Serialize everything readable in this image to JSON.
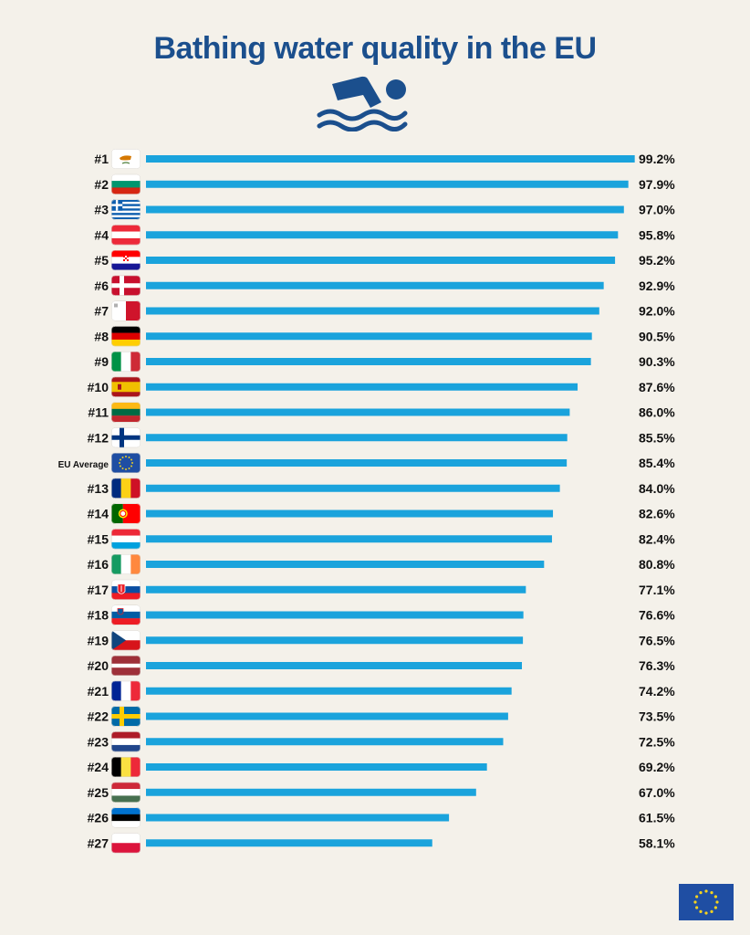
{
  "title": "Bathing water quality in the EU",
  "icons": {
    "swimmer": "swimmer-icon",
    "eu_flag": "eu-flag-icon"
  },
  "colors": {
    "bar": "#1aa3dc",
    "title": "#1b4f8d",
    "background": "#f4f1ea",
    "eu_blue": "#1f4ea3",
    "eu_star": "#f6d31f"
  },
  "chart_data": {
    "type": "bar",
    "orientation": "horizontal",
    "title": "Bathing water quality in the EU",
    "xlim": [
      0,
      100
    ],
    "grid": false,
    "legend": "none",
    "categories": [
      "#1",
      "#2",
      "#3",
      "#4",
      "#5",
      "#6",
      "#7",
      "#8",
      "#9",
      "#10",
      "#11",
      "#12",
      "EU Average",
      "#13",
      "#14",
      "#15",
      "#16",
      "#17",
      "#18",
      "#19",
      "#20",
      "#21",
      "#22",
      "#23",
      "#24",
      "#25",
      "#26",
      "#27"
    ],
    "flags": [
      "cyprus",
      "bulgaria",
      "greece",
      "austria",
      "croatia",
      "denmark",
      "malta",
      "germany",
      "italy",
      "spain",
      "lithuania",
      "finland",
      "eu",
      "romania",
      "portugal",
      "luxembourg",
      "ireland",
      "slovakia",
      "slovenia",
      "czechia",
      "latvia",
      "france",
      "sweden",
      "netherlands",
      "belgium",
      "hungary",
      "estonia",
      "poland"
    ],
    "values": [
      99.2,
      97.9,
      97.0,
      95.8,
      95.2,
      92.9,
      92.0,
      90.5,
      90.3,
      87.6,
      86.0,
      85.5,
      85.4,
      84.0,
      82.6,
      82.4,
      80.8,
      77.1,
      76.6,
      76.5,
      76.3,
      74.2,
      73.5,
      72.5,
      69.2,
      67.0,
      61.5,
      58.1
    ],
    "value_labels": [
      "99.2%",
      "97.9%",
      "97.0%",
      "95.8%",
      "95.2%",
      "92.9%",
      "92.0%",
      "90.5%",
      "90.3%",
      "87.6%",
      "86.0%",
      "85.5%",
      "85.4%",
      "84.0%",
      "82.6%",
      "82.4%",
      "80.8%",
      "77.1%",
      "76.6%",
      "76.5%",
      "76.3%",
      "74.2%",
      "73.5%",
      "72.5%",
      "69.2%",
      "67.0%",
      "61.5%",
      "58.1%"
    ]
  }
}
